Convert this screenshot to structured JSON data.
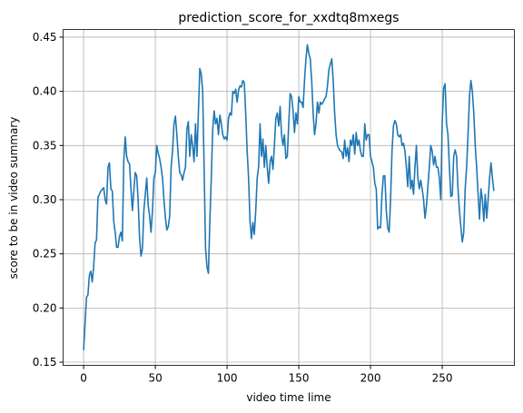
{
  "chart_data": {
    "type": "line",
    "title": "prediction_score_for_xxdtq8mxegs",
    "xlabel": "video time lime",
    "ylabel": "score to be in video summary",
    "x": [
      0,
      2,
      3,
      4,
      5,
      6,
      7,
      8,
      9,
      10,
      12,
      14,
      15,
      16,
      17,
      18,
      19,
      20,
      21,
      22,
      23,
      24,
      25,
      26,
      27,
      28,
      29,
      30,
      31,
      32,
      33,
      34,
      35,
      36,
      37,
      38,
      39,
      40,
      41,
      42,
      43,
      44,
      45,
      46,
      47,
      48,
      49,
      50,
      51,
      52,
      53,
      54,
      55,
      56,
      57,
      58,
      59,
      60,
      61,
      62,
      63,
      64,
      65,
      66,
      67,
      68,
      69,
      70,
      71,
      72,
      73,
      74,
      75,
      76,
      77,
      78,
      79,
      80,
      81,
      82,
      83,
      84,
      85,
      86,
      87,
      88,
      89,
      90,
      91,
      92,
      93,
      94,
      95,
      96,
      97,
      98,
      99,
      100,
      101,
      102,
      103,
      104,
      105,
      106,
      107,
      108,
      109,
      110,
      111,
      112,
      113,
      114,
      115,
      116,
      117,
      118,
      119,
      120,
      121,
      122,
      123,
      124,
      125,
      126,
      127,
      128,
      129,
      130,
      131,
      132,
      133,
      134,
      135,
      136,
      137,
      138,
      139,
      140,
      141,
      142,
      143,
      144,
      145,
      146,
      147,
      148,
      149,
      150,
      151,
      152,
      153,
      154,
      155,
      156,
      157,
      158,
      159,
      160,
      161,
      162,
      163,
      164,
      165,
      166,
      167,
      168,
      169,
      170,
      171,
      172,
      173,
      174,
      175,
      176,
      177,
      178,
      179,
      180,
      181,
      182,
      183,
      184,
      185,
      186,
      187,
      188,
      189,
      190,
      191,
      192,
      193,
      194,
      195,
      196,
      197,
      198,
      199,
      200,
      201,
      202,
      203,
      204,
      205,
      206,
      207,
      208,
      209,
      210,
      211,
      212,
      213,
      214,
      215,
      216,
      217,
      218,
      219,
      220,
      221,
      222,
      223,
      224,
      225,
      226,
      227,
      228,
      229,
      230,
      231,
      232,
      233,
      234,
      235,
      236,
      237,
      238,
      239,
      240,
      241,
      242,
      243,
      244,
      245,
      246,
      247,
      248,
      249,
      250,
      251,
      252,
      253,
      254,
      255,
      256,
      257,
      258,
      259,
      260,
      261,
      262,
      263,
      264,
      265,
      266,
      267,
      268,
      269,
      270,
      271,
      272,
      273,
      274,
      275,
      276,
      277,
      278,
      279,
      280,
      281,
      282,
      283,
      284,
      285,
      286
    ],
    "series": [
      {
        "name": "prediction_score",
        "color": "#1f77b4",
        "values": [
          0.161,
          0.21,
          0.212,
          0.23,
          0.234,
          0.224,
          0.238,
          0.26,
          0.263,
          0.302,
          0.308,
          0.311,
          0.3,
          0.296,
          0.33,
          0.334,
          0.31,
          0.308,
          0.28,
          0.27,
          0.256,
          0.256,
          0.266,
          0.27,
          0.262,
          0.336,
          0.358,
          0.34,
          0.335,
          0.333,
          0.31,
          0.29,
          0.308,
          0.325,
          0.322,
          0.3,
          0.265,
          0.248,
          0.255,
          0.29,
          0.305,
          0.32,
          0.295,
          0.285,
          0.27,
          0.29,
          0.32,
          0.325,
          0.35,
          0.343,
          0.338,
          0.33,
          0.32,
          0.3,
          0.284,
          0.272,
          0.275,
          0.285,
          0.33,
          0.345,
          0.37,
          0.377,
          0.36,
          0.34,
          0.325,
          0.323,
          0.318,
          0.325,
          0.33,
          0.365,
          0.372,
          0.34,
          0.36,
          0.35,
          0.335,
          0.37,
          0.34,
          0.38,
          0.421,
          0.416,
          0.4,
          0.33,
          0.255,
          0.238,
          0.232,
          0.28,
          0.32,
          0.365,
          0.382,
          0.37,
          0.375,
          0.36,
          0.378,
          0.37,
          0.36,
          0.356,
          0.358,
          0.355,
          0.375,
          0.38,
          0.378,
          0.4,
          0.398,
          0.402,
          0.39,
          0.401,
          0.405,
          0.404,
          0.41,
          0.408,
          0.38,
          0.345,
          0.32,
          0.28,
          0.264,
          0.279,
          0.268,
          0.29,
          0.32,
          0.33,
          0.37,
          0.34,
          0.356,
          0.33,
          0.35,
          0.33,
          0.315,
          0.335,
          0.34,
          0.328,
          0.35,
          0.375,
          0.38,
          0.368,
          0.386,
          0.36,
          0.35,
          0.36,
          0.338,
          0.34,
          0.37,
          0.398,
          0.395,
          0.382,
          0.362,
          0.38,
          0.37,
          0.395,
          0.39,
          0.39,
          0.385,
          0.41,
          0.43,
          0.443,
          0.435,
          0.43,
          0.41,
          0.38,
          0.36,
          0.37,
          0.39,
          0.38,
          0.39,
          0.388,
          0.39,
          0.393,
          0.395,
          0.405,
          0.42,
          0.425,
          0.43,
          0.41,
          0.38,
          0.36,
          0.35,
          0.347,
          0.345,
          0.344,
          0.338,
          0.355,
          0.34,
          0.348,
          0.335,
          0.355,
          0.35,
          0.36,
          0.342,
          0.362,
          0.35,
          0.355,
          0.345,
          0.34,
          0.34,
          0.37,
          0.355,
          0.36,
          0.36,
          0.34,
          0.335,
          0.33,
          0.315,
          0.31,
          0.273,
          0.275,
          0.274,
          0.305,
          0.322,
          0.322,
          0.29,
          0.274,
          0.27,
          0.3,
          0.345,
          0.368,
          0.373,
          0.37,
          0.36,
          0.358,
          0.36,
          0.35,
          0.352,
          0.345,
          0.33,
          0.312,
          0.34,
          0.31,
          0.318,
          0.305,
          0.33,
          0.35,
          0.32,
          0.31,
          0.318,
          0.31,
          0.3,
          0.283,
          0.294,
          0.312,
          0.33,
          0.35,
          0.345,
          0.332,
          0.34,
          0.33,
          0.33,
          0.32,
          0.3,
          0.372,
          0.403,
          0.407,
          0.37,
          0.36,
          0.33,
          0.303,
          0.304,
          0.34,
          0.346,
          0.34,
          0.31,
          0.29,
          0.275,
          0.261,
          0.27,
          0.31,
          0.33,
          0.36,
          0.395,
          0.41,
          0.4,
          0.38,
          0.35,
          0.33,
          0.305,
          0.282,
          0.31,
          0.3,
          0.28,
          0.305,
          0.283,
          0.3,
          0.32,
          0.334,
          0.32,
          0.308
        ]
      }
    ],
    "xlim": [
      -14.3,
      300.3
    ],
    "xticks": [
      0,
      50,
      100,
      150,
      200,
      250
    ],
    "ylim": [
      0.147,
      0.457
    ],
    "yticks": [
      {
        "value": 0.15,
        "label": "0.15"
      },
      {
        "value": 0.2,
        "label": "0.20"
      },
      {
        "value": 0.25,
        "label": "0.25"
      },
      {
        "value": 0.3,
        "label": "0.30"
      },
      {
        "value": 0.35,
        "label": "0.35"
      },
      {
        "value": 0.4,
        "label": "0.40"
      },
      {
        "value": 0.45,
        "label": "0.45"
      }
    ],
    "grid": true
  }
}
